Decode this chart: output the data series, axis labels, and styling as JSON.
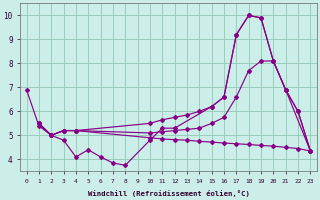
{
  "xlabel": "Windchill (Refroidissement éolien,°C)",
  "bg_color": "#cceee8",
  "grid_color": "#99ccbb",
  "line_color": "#880088",
  "xlim_min": -0.5,
  "xlim_max": 23.5,
  "ylim_min": 3.5,
  "ylim_max": 10.5,
  "xticks": [
    0,
    1,
    2,
    3,
    4,
    5,
    6,
    7,
    8,
    9,
    10,
    11,
    12,
    13,
    14,
    15,
    16,
    17,
    18,
    19,
    20,
    21,
    22,
    23
  ],
  "yticks": [
    4,
    5,
    6,
    7,
    8,
    9,
    10
  ],
  "line1_x": [
    0,
    1,
    2,
    3,
    4,
    5,
    6,
    7,
    8,
    10,
    11,
    12,
    15,
    16,
    17,
    18,
    19,
    20,
    21,
    23
  ],
  "line1_y": [
    6.9,
    5.4,
    5.0,
    4.8,
    4.1,
    4.4,
    4.1,
    3.85,
    3.75,
    4.8,
    5.3,
    5.3,
    6.2,
    6.6,
    9.2,
    10.0,
    9.9,
    8.1,
    6.9,
    4.35
  ],
  "line2_x": [
    1,
    2,
    3,
    4,
    10,
    11,
    12,
    13,
    14,
    15,
    16,
    17,
    18,
    19,
    20,
    21,
    22,
    23
  ],
  "line2_y": [
    5.5,
    5.0,
    5.2,
    5.2,
    5.5,
    5.65,
    5.75,
    5.85,
    6.0,
    6.2,
    6.6,
    9.2,
    10.0,
    9.9,
    8.1,
    6.9,
    6.0,
    4.35
  ],
  "line3_x": [
    1,
    2,
    3,
    4,
    10,
    11,
    12,
    13,
    14,
    15,
    16,
    17,
    18,
    19,
    20,
    21,
    22,
    23
  ],
  "line3_y": [
    5.5,
    5.0,
    5.2,
    5.2,
    5.1,
    5.15,
    5.2,
    5.25,
    5.3,
    5.5,
    5.75,
    6.6,
    7.7,
    8.1,
    8.1,
    6.9,
    6.0,
    4.35
  ],
  "line4_x": [
    1,
    2,
    3,
    4,
    10,
    11,
    12,
    13,
    14,
    15,
    16,
    17,
    18,
    19,
    20,
    21,
    22,
    23
  ],
  "line4_y": [
    5.5,
    5.0,
    5.2,
    5.2,
    4.9,
    4.85,
    4.82,
    4.8,
    4.75,
    4.72,
    4.68,
    4.65,
    4.62,
    4.58,
    4.55,
    4.5,
    4.45,
    4.35
  ]
}
